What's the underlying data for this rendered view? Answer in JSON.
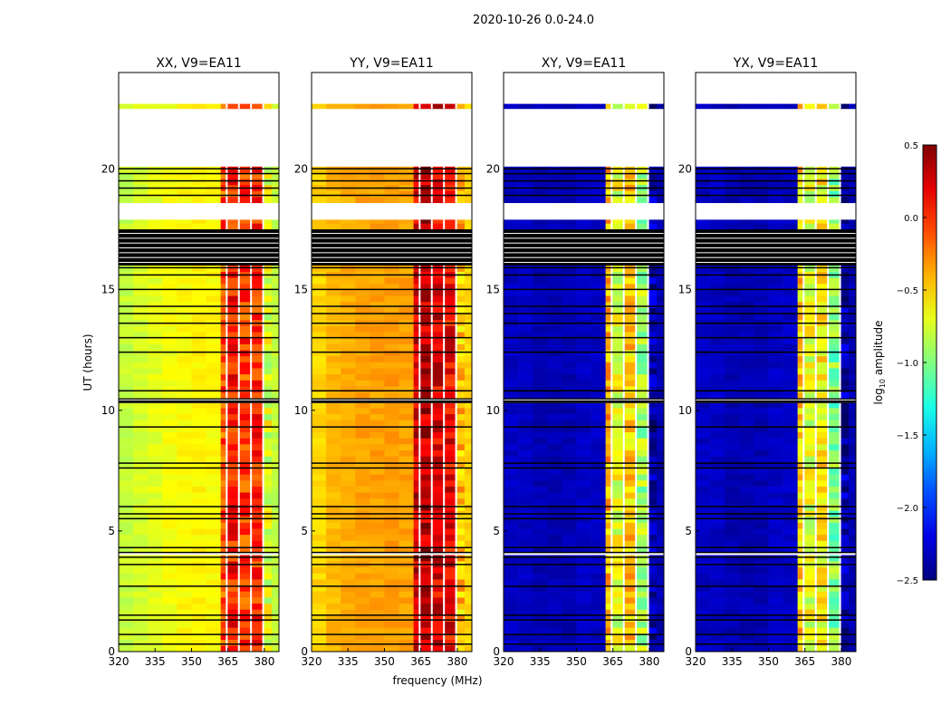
{
  "chart_data": {
    "type": "heatmap",
    "suptitle": "2020-10-26 0.0-24.0",
    "xlabel": "frequency (MHz)",
    "ylabel": "UT (hours)",
    "xlim": [
      320,
      386
    ],
    "ylim": [
      0,
      24
    ],
    "xticks": [
      "320",
      "335",
      "350",
      "365",
      "380"
    ],
    "xtick_values": [
      320,
      335,
      350,
      365,
      380
    ],
    "yticks": [
      "0",
      "5",
      "10",
      "15",
      "20"
    ],
    "ytick_values": [
      0,
      5,
      10,
      15,
      20
    ],
    "colorbar": {
      "label_main": "log",
      "label_sub": "10",
      "label_rest": " amplitude",
      "colormap": "jet",
      "range": [
        -2.5,
        0.5
      ],
      "ticks": [
        "0.5",
        "0.0",
        "−0.5",
        "−1.0",
        "−1.5",
        "−2.0",
        "−2.5"
      ],
      "tick_values": [
        0.5,
        0.0,
        -0.5,
        -1.0,
        -1.5,
        -2.0,
        -2.5
      ]
    },
    "data_segments_hours": [
      [
        0,
        4.0
      ],
      [
        4.1,
        10.3
      ],
      [
        10.5,
        16.0
      ],
      [
        17.5,
        17.9
      ],
      [
        18.6,
        20.1
      ],
      [
        22.5,
        22.7
      ]
    ],
    "flagged_band_hours": [
      [
        16.0,
        17.5
      ],
      [
        10.3,
        10.5
      ]
    ],
    "flagged_line_hours": [
      0.3,
      0.7,
      1.3,
      1.5,
      2.7,
      3.6,
      3.9,
      4.1,
      4.3,
      5.5,
      5.7,
      6.0,
      7.6,
      7.8,
      9.3,
      10.8,
      12.4,
      13.0,
      13.6,
      14.0,
      14.3,
      15.0,
      15.6,
      15.9,
      18.9,
      19.2,
      19.5,
      19.8,
      20.0
    ],
    "channel_gaps_mhz": [
      364.5,
      369.5,
      374.5,
      379.5
    ],
    "spectral_freqs_mhz": [
      320,
      326,
      332,
      338,
      344,
      350,
      356,
      362,
      364.5,
      369.5,
      374.5,
      379.5,
      383,
      386
    ],
    "panels": [
      {
        "title": "XX, V9=EA11",
        "profile": [
          -0.8,
          -0.75,
          -0.7,
          -0.65,
          -0.62,
          -0.6,
          -0.62,
          -0.1,
          0.05,
          -0.05,
          0.0,
          -0.7,
          -0.8
        ]
      },
      {
        "title": "YY, V9=EA11",
        "profile": [
          -0.5,
          -0.42,
          -0.38,
          -0.35,
          -0.35,
          -0.33,
          -0.35,
          0.25,
          0.3,
          0.2,
          0.15,
          -0.45,
          -0.5
        ]
      },
      {
        "title": "XY, V9=EA11",
        "profile": [
          -2.3,
          -2.3,
          -2.35,
          -2.35,
          -2.35,
          -2.3,
          -2.3,
          -0.4,
          -0.7,
          -0.5,
          -0.9,
          -2.35,
          -2.35
        ]
      },
      {
        "title": "YX, V9=EA11",
        "profile": [
          -2.3,
          -2.3,
          -2.35,
          -2.35,
          -2.35,
          -2.3,
          -2.3,
          -0.5,
          -0.7,
          -0.6,
          -1.0,
          -2.35,
          -2.35
        ]
      }
    ]
  }
}
